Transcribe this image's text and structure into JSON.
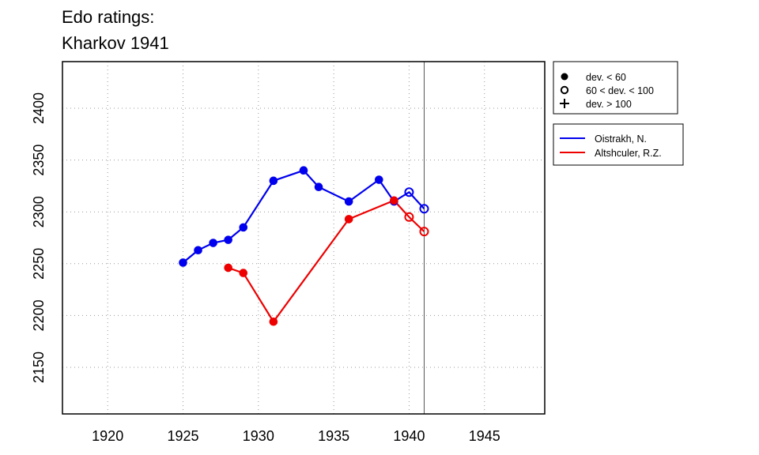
{
  "chart_data": {
    "type": "line",
    "title_lines": [
      "Edo ratings:",
      "Kharkov 1941"
    ],
    "xlabel": "",
    "ylabel": "",
    "xlim": [
      1917,
      1949
    ],
    "ylim": [
      2105,
      2445
    ],
    "x_ticks": [
      1920,
      1925,
      1930,
      1935,
      1940,
      1945
    ],
    "y_ticks": [
      2150,
      2200,
      2250,
      2300,
      2350,
      2400
    ],
    "grid": true,
    "reference_line_x": 1941,
    "deviation_legend": [
      {
        "symbol": "filled-circle",
        "label": "dev. < 60"
      },
      {
        "symbol": "open-circle",
        "label": "60 < dev. < 100"
      },
      {
        "symbol": "plus",
        "label": "dev. > 100"
      }
    ],
    "series": [
      {
        "name": "Oistrakh, N.",
        "color": "#0000ee",
        "points": [
          {
            "x": 1925,
            "y": 2251,
            "marker": "filled"
          },
          {
            "x": 1926,
            "y": 2263,
            "marker": "filled"
          },
          {
            "x": 1927,
            "y": 2270,
            "marker": "filled"
          },
          {
            "x": 1928,
            "y": 2273,
            "marker": "filled"
          },
          {
            "x": 1929,
            "y": 2285,
            "marker": "filled"
          },
          {
            "x": 1931,
            "y": 2330,
            "marker": "filled"
          },
          {
            "x": 1933,
            "y": 2340,
            "marker": "filled"
          },
          {
            "x": 1934,
            "y": 2324,
            "marker": "filled"
          },
          {
            "x": 1936,
            "y": 2310,
            "marker": "filled"
          },
          {
            "x": 1938,
            "y": 2331,
            "marker": "filled"
          },
          {
            "x": 1939,
            "y": 2310,
            "marker": "filled"
          },
          {
            "x": 1940,
            "y": 2319,
            "marker": "open"
          },
          {
            "x": 1941,
            "y": 2303,
            "marker": "open"
          }
        ]
      },
      {
        "name": "Altshculer, R.Z.",
        "color": "#ee0000",
        "points": [
          {
            "x": 1928,
            "y": 2246,
            "marker": "filled"
          },
          {
            "x": 1929,
            "y": 2241,
            "marker": "filled"
          },
          {
            "x": 1931,
            "y": 2194,
            "marker": "filled"
          },
          {
            "x": 1936,
            "y": 2293,
            "marker": "filled"
          },
          {
            "x": 1939,
            "y": 2311,
            "marker": "filled"
          },
          {
            "x": 1940,
            "y": 2295,
            "marker": "open"
          },
          {
            "x": 1941,
            "y": 2281,
            "marker": "open"
          }
        ]
      }
    ]
  }
}
